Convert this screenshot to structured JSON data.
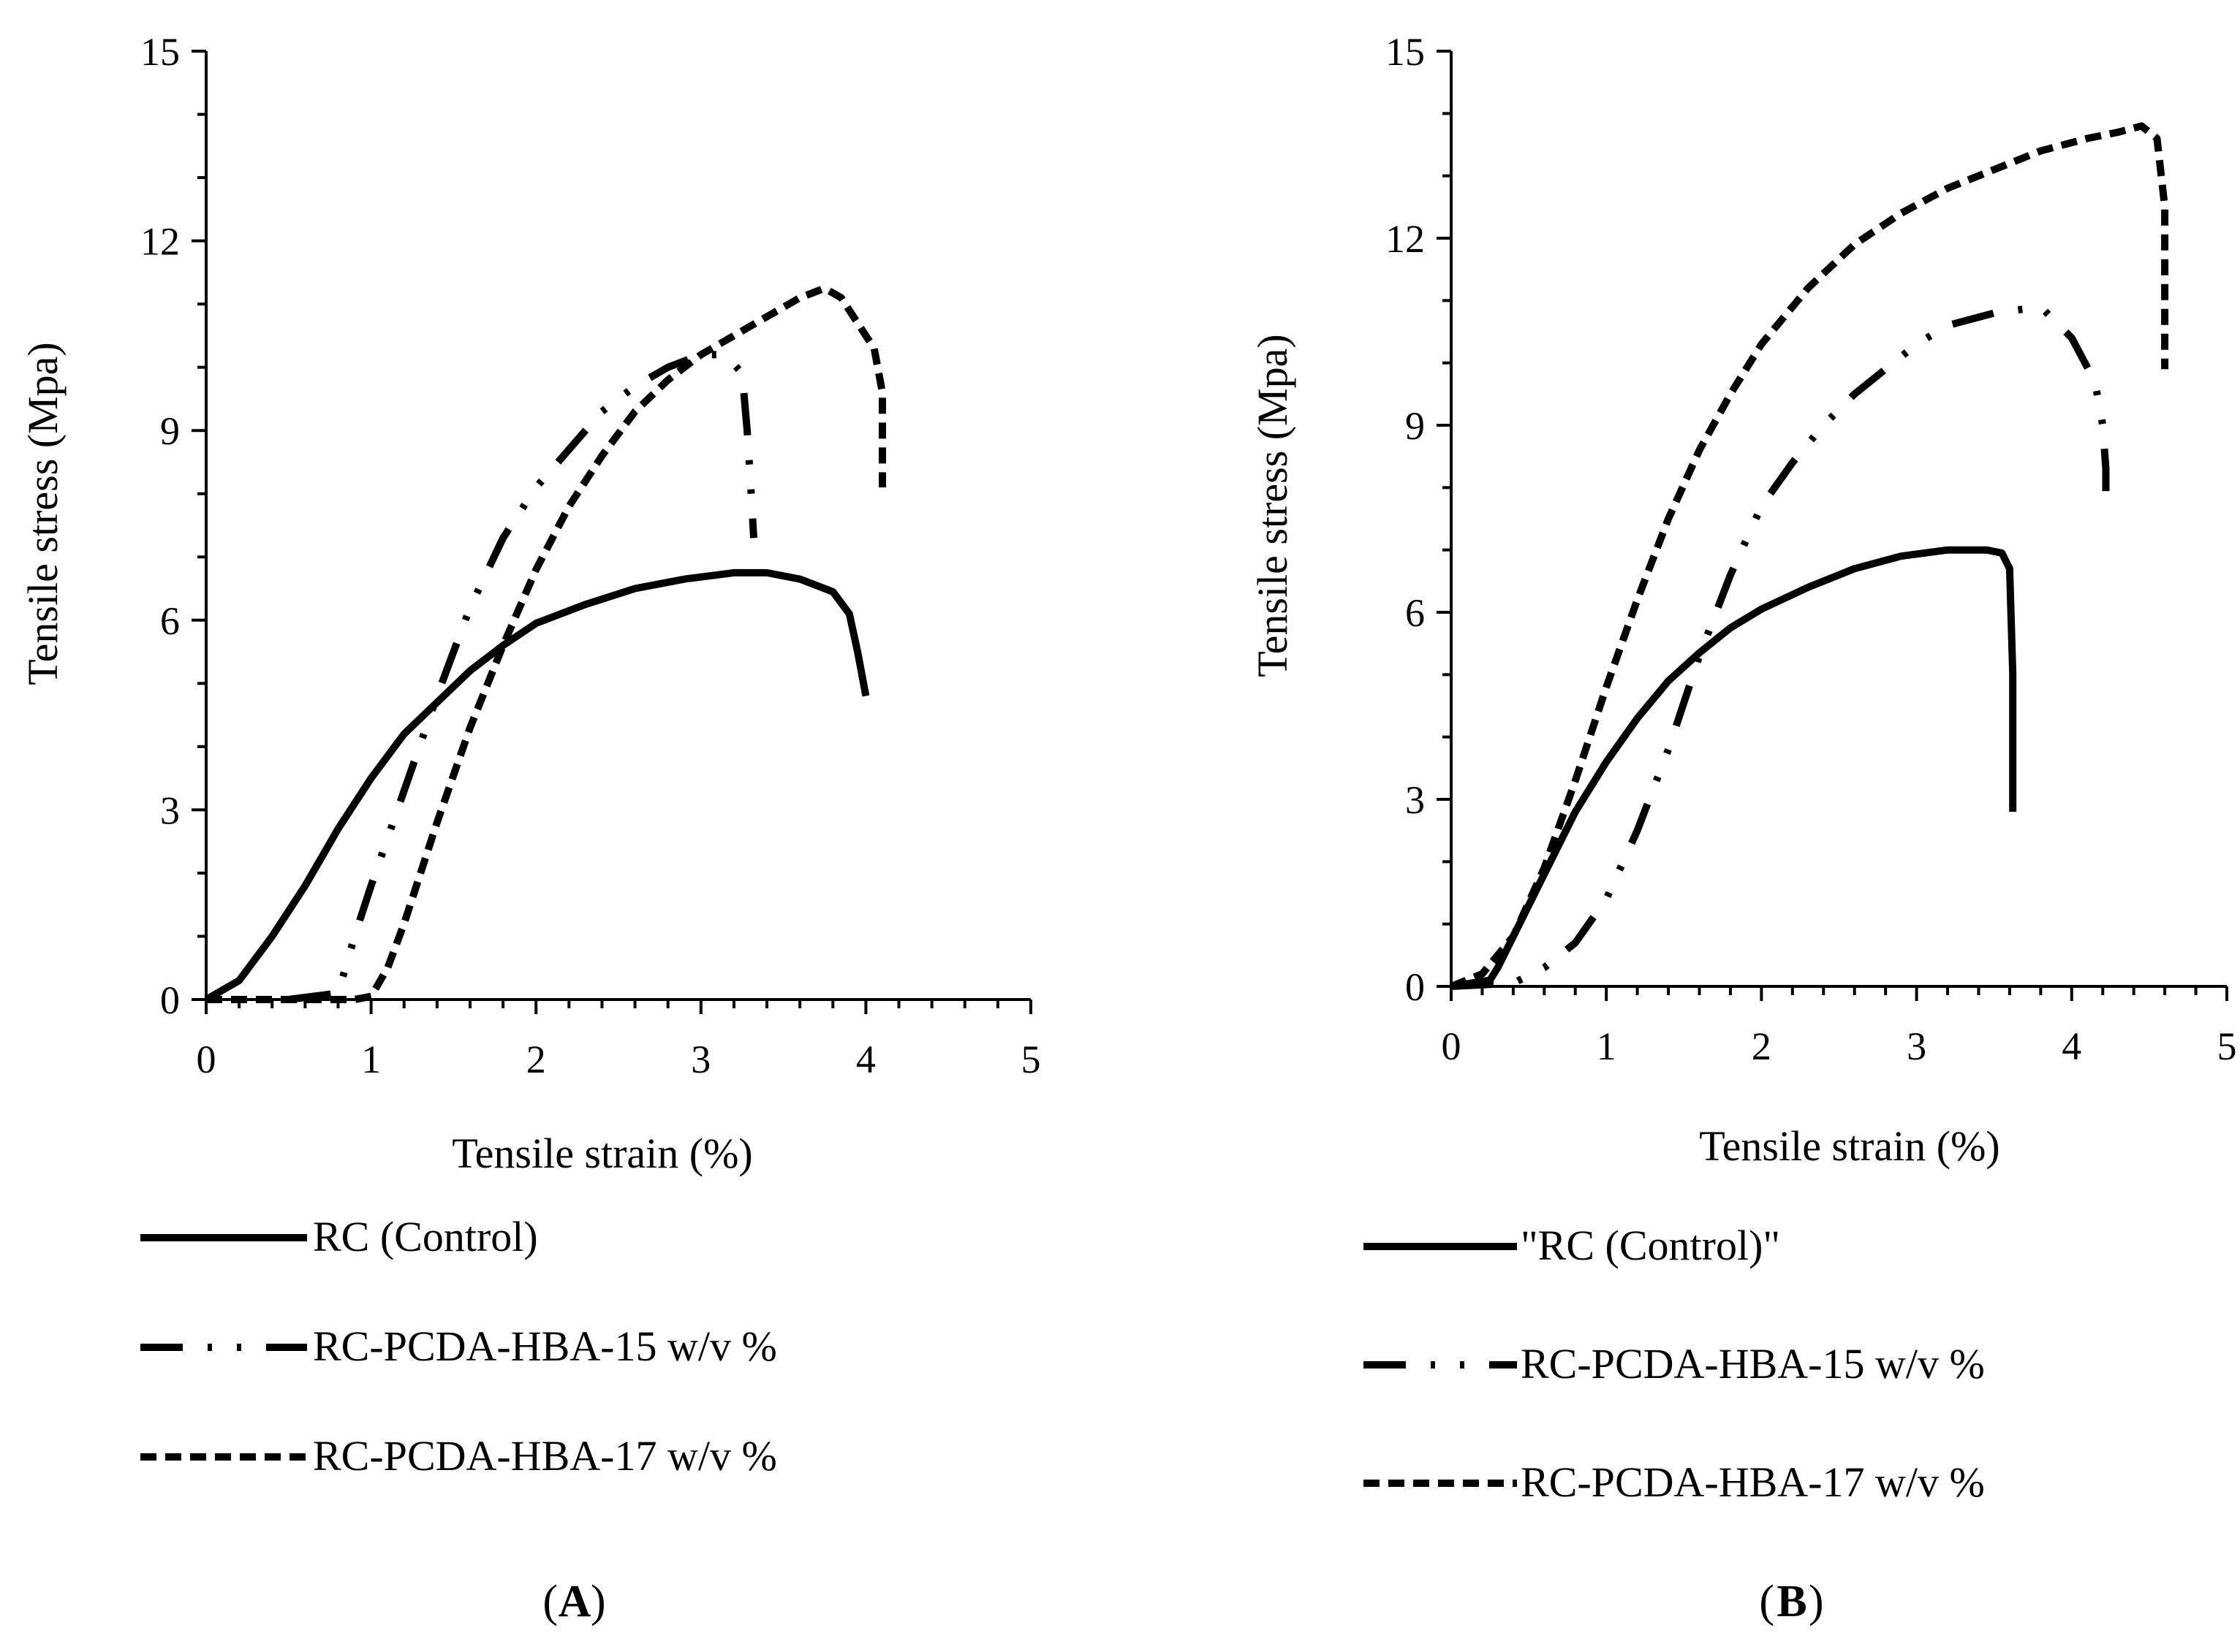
{
  "chart_data": [
    {
      "type": "line",
      "panel": "A",
      "panel_label": "A",
      "xlabel": "Tensile strain (%)",
      "ylabel": "Tensile stress (Mpa)",
      "xlim": [
        0,
        5
      ],
      "ylim": [
        0,
        15
      ],
      "xticks": [
        "0",
        "1",
        "2",
        "3",
        "4",
        "5"
      ],
      "yticks": [
        "0",
        "3",
        "6",
        "9",
        "12",
        "15"
      ],
      "series": [
        {
          "name": "RC (Control)",
          "style": "solid",
          "x": [
            0,
            0.2,
            0.4,
            0.6,
            0.8,
            1.0,
            1.2,
            1.4,
            1.6,
            1.8,
            2.0,
            2.3,
            2.6,
            2.9,
            3.2,
            3.4,
            3.6,
            3.8,
            3.9,
            3.95,
            4.0
          ],
          "y": [
            0,
            0.3,
            1.0,
            1.8,
            2.7,
            3.5,
            4.2,
            4.7,
            5.2,
            5.6,
            5.95,
            6.25,
            6.5,
            6.65,
            6.75,
            6.75,
            6.65,
            6.45,
            6.1,
            5.5,
            4.8
          ]
        },
        {
          "name": "RC-PCDA-HBA-15 w/v %",
          "style": "dash-dot-dot",
          "x": [
            0.5,
            0.8,
            0.9,
            1.0,
            1.2,
            1.4,
            1.6,
            1.8,
            2.0,
            2.2,
            2.4,
            2.6,
            2.8,
            3.0,
            3.15,
            3.25,
            3.28,
            3.3,
            3.32
          ],
          "y": [
            0,
            0.1,
            1.0,
            1.8,
            3.3,
            4.8,
            6.2,
            7.3,
            8.1,
            8.7,
            9.3,
            9.7,
            10.0,
            10.2,
            10.2,
            9.9,
            9.0,
            8.2,
            7.3
          ]
        },
        {
          "name": "RC-PCDA-HBA-17 w/v %",
          "style": "dashed",
          "x": [
            0,
            0.9,
            1.0,
            1.1,
            1.2,
            1.4,
            1.6,
            1.8,
            2.0,
            2.2,
            2.4,
            2.6,
            2.8,
            3.0,
            3.2,
            3.4,
            3.6,
            3.75,
            3.85,
            3.95,
            4.05,
            4.1,
            4.1
          ],
          "y": [
            0,
            0,
            0.05,
            0.5,
            1.2,
            2.8,
            4.3,
            5.6,
            6.8,
            7.8,
            8.6,
            9.3,
            9.8,
            10.2,
            10.5,
            10.8,
            11.1,
            11.25,
            11.1,
            10.7,
            10.3,
            9.6,
            8.1
          ]
        }
      ]
    },
    {
      "type": "line",
      "panel": "B",
      "panel_label": "B",
      "xlabel": "Tensile strain (%)",
      "ylabel": "Tensile stress (Mpa)",
      "xlim": [
        0,
        5
      ],
      "ylim": [
        0,
        15
      ],
      "xticks": [
        "0",
        "1",
        "2",
        "3",
        "4",
        "5"
      ],
      "yticks": [
        "0",
        "3",
        "6",
        "9",
        "12",
        "15"
      ],
      "series": [
        {
          "name": "\"RC (Control)\"",
          "style": "solid",
          "x": [
            0,
            0.25,
            0.3,
            0.4,
            0.6,
            0.8,
            1.0,
            1.2,
            1.4,
            1.6,
            1.8,
            2.0,
            2.3,
            2.6,
            2.9,
            3.2,
            3.45,
            3.55,
            3.6,
            3.62,
            3.62
          ],
          "y": [
            0,
            0.1,
            0.3,
            0.8,
            1.8,
            2.8,
            3.6,
            4.3,
            4.9,
            5.35,
            5.75,
            6.05,
            6.4,
            6.7,
            6.9,
            7.0,
            7.0,
            6.95,
            6.7,
            5.0,
            2.8
          ]
        },
        {
          "name": "RC-PCDA-HBA-15 w/v %",
          "style": "dash-dot-dot",
          "x": [
            0,
            0.4,
            0.6,
            0.8,
            1.0,
            1.2,
            1.4,
            1.6,
            1.8,
            2.0,
            2.2,
            2.4,
            2.6,
            2.8,
            3.0,
            3.2,
            3.5,
            3.8,
            4.0,
            4.15,
            4.2,
            4.22,
            4.22
          ],
          "y": [
            0,
            0.05,
            0.3,
            0.7,
            1.4,
            2.5,
            3.8,
            5.3,
            6.6,
            7.7,
            8.4,
            9.0,
            9.5,
            9.9,
            10.3,
            10.6,
            10.8,
            10.9,
            10.4,
            9.7,
            9.0,
            8.3,
            7.7
          ]
        },
        {
          "name": "RC-PCDA-HBA-17 w/v %",
          "style": "dashed",
          "x": [
            0,
            0.2,
            0.4,
            0.6,
            0.8,
            1.0,
            1.2,
            1.4,
            1.6,
            1.8,
            2.0,
            2.3,
            2.6,
            2.9,
            3.2,
            3.5,
            3.8,
            4.1,
            4.3,
            4.45,
            4.55,
            4.6,
            4.6
          ],
          "y": [
            0,
            0.2,
            0.8,
            1.9,
            3.3,
            4.8,
            6.2,
            7.5,
            8.6,
            9.5,
            10.3,
            11.2,
            11.9,
            12.4,
            12.8,
            13.1,
            13.4,
            13.6,
            13.7,
            13.8,
            13.6,
            12.5,
            9.9
          ]
        }
      ]
    }
  ]
}
